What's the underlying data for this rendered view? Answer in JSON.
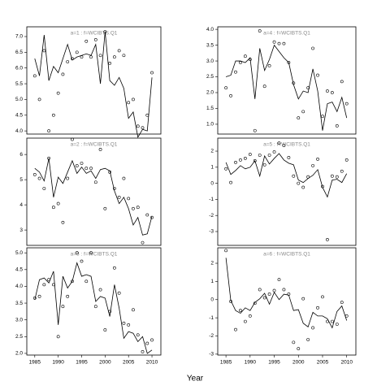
{
  "x_label": "Year",
  "chart_data": [
    {
      "type": "scatter",
      "title": "a=1 : f=WCIBTS.Q1",
      "x": [
        1985,
        1986,
        1987,
        1988,
        1989,
        1990,
        1991,
        1992,
        1993,
        1994,
        1995,
        1996,
        1997,
        1998,
        1999,
        2000,
        2001,
        2002,
        2003,
        2004,
        2005,
        2006,
        2007,
        2008,
        2009,
        2010
      ],
      "series": [
        {
          "mode": "points",
          "color": "#000000",
          "values": [
            5.75,
            5.0,
            6.55,
            4.0,
            4.5,
            5.2,
            5.8,
            6.2,
            6.3,
            6.5,
            6.35,
            6.85,
            6.35,
            6.9,
            6.4,
            7.15,
            6.15,
            6.35,
            6.55,
            6.4,
            4.9,
            5.0,
            4.15,
            4.1,
            4.5,
            5.85
          ]
        },
        {
          "mode": "line",
          "color": "#000000",
          "values": [
            6.3,
            5.75,
            7.05,
            5.6,
            6.05,
            5.85,
            6.3,
            6.75,
            6.25,
            6.35,
            6.4,
            6.45,
            6.4,
            6.75,
            5.5,
            7.15,
            5.6,
            5.45,
            5.7,
            5.35,
            4.4,
            4.6,
            3.8,
            4.05,
            4.0,
            5.7
          ]
        }
      ],
      "xlim": [
        1983.3,
        2011.9
      ],
      "ylim": [
        3.9,
        7.31
      ],
      "yticks": [
        {
          "value": 4,
          "label": "4.0"
        },
        {
          "value": 4.5,
          "label": "4.5"
        },
        {
          "value": 5,
          "label": "5.0"
        },
        {
          "value": 5.5,
          "label": "5.5"
        },
        {
          "value": 6,
          "label": "6.0"
        },
        {
          "value": 6.5,
          "label": "6.5"
        },
        {
          "value": 7,
          "label": "7.0"
        }
      ]
    },
    {
      "type": "scatter",
      "title": "a=2 : f=WCIBTS.Q1",
      "x": [
        1985,
        1986,
        1987,
        1988,
        1989,
        1990,
        1991,
        1992,
        1993,
        1994,
        1995,
        1996,
        1997,
        1998,
        1999,
        2000,
        2001,
        2002,
        2003,
        2004,
        2005,
        2006,
        2007,
        2008,
        2009,
        2010
      ],
      "series": [
        {
          "mode": "points",
          "color": "#000000",
          "values": [
            5.2,
            5.05,
            4.65,
            5.85,
            3.9,
            4.05,
            3.3,
            5.05,
            6.6,
            5.55,
            5.65,
            5.45,
            5.45,
            4.9,
            6.2,
            3.85,
            5.3,
            4.65,
            4.3,
            5.05,
            4.25,
            3.85,
            3.9,
            2.5,
            3.6,
            3.5
          ]
        },
        {
          "mode": "line",
          "color": "#000000",
          "values": [
            5.45,
            5.3,
            4.95,
            5.85,
            4.3,
            5.1,
            4.85,
            5.3,
            5.75,
            5.25,
            5.5,
            5.25,
            5.35,
            5.05,
            5.4,
            5.45,
            5.35,
            4.55,
            4.05,
            4.3,
            3.85,
            3.2,
            3.5,
            2.8,
            2.85,
            3.55
          ]
        }
      ],
      "xlim": [
        1983.3,
        2011.9
      ],
      "ylim": [
        2.39,
        6.65
      ],
      "yticks": [
        3,
        4,
        5,
        6
      ]
    },
    {
      "type": "scatter",
      "title": "a=3 : f=WCIBTS.Q1",
      "x": [
        1985,
        1986,
        1987,
        1988,
        1989,
        1990,
        1991,
        1992,
        1993,
        1994,
        1995,
        1996,
        1997,
        1998,
        1999,
        2000,
        2001,
        2002,
        2003,
        2004,
        2005,
        2006,
        2007,
        2008,
        2009,
        2010
      ],
      "series": [
        {
          "mode": "points",
          "color": "#000000",
          "values": [
            3.65,
            3.7,
            4.05,
            4.2,
            4.05,
            2.5,
            3.4,
            3.7,
            4.15,
            5.0,
            4.75,
            4.15,
            5.0,
            3.4,
            3.9,
            2.7,
            3.25,
            4.55,
            3.8,
            2.9,
            2.85,
            3.3,
            2.55,
            2.05,
            2.3,
            2.4
          ]
        },
        {
          "mode": "line",
          "color": "#000000",
          "values": [
            3.6,
            4.2,
            4.25,
            4.1,
            4.45,
            2.85,
            4.3,
            3.95,
            4.15,
            4.7,
            4.3,
            4.35,
            4.3,
            3.55,
            3.7,
            3.65,
            3.1,
            4.05,
            3.35,
            2.45,
            2.65,
            2.6,
            2.35,
            2.5,
            2.0,
            2.1
          ]
        }
      ],
      "xlim": [
        1983.3,
        2011.9
      ],
      "ylim": [
        1.95,
        5.15
      ],
      "xticks": [
        1985,
        1990,
        1995,
        2000,
        2005,
        2010
      ],
      "yticks": [
        {
          "value": 2,
          "label": "2.0"
        },
        {
          "value": 2.5,
          "label": "2.5"
        },
        {
          "value": 3,
          "label": "3.0"
        },
        {
          "value": 3.5,
          "label": "3.5"
        },
        {
          "value": 4,
          "label": "4.0"
        },
        {
          "value": 4.5,
          "label": "4.5"
        },
        {
          "value": 5,
          "label": "5.0"
        }
      ]
    },
    {
      "type": "scatter",
      "title": "a=4 : f=WCIBTS.Q1",
      "x": [
        1985,
        1986,
        1987,
        1988,
        1989,
        1990,
        1991,
        1992,
        1993,
        1994,
        1995,
        1996,
        1997,
        1998,
        1999,
        2000,
        2001,
        2002,
        2003,
        2004,
        2005,
        2006,
        2007,
        2008,
        2009,
        2010
      ],
      "series": [
        {
          "mode": "points",
          "color": "#000000",
          "values": [
            2.15,
            1.9,
            2.65,
            2.95,
            3.15,
            3.05,
            0.8,
            3.95,
            2.2,
            2.85,
            3.6,
            3.55,
            3.55,
            2.95,
            2.3,
            1.2,
            1.4,
            2.15,
            3.4,
            2.55,
            1.25,
            2.05,
            2.0,
            0.95,
            2.35,
            1.65
          ]
        },
        {
          "mode": "line",
          "color": "#000000",
          "values": [
            2.5,
            2.55,
            3.0,
            3.0,
            2.95,
            3.1,
            1.8,
            3.4,
            2.7,
            3.05,
            3.5,
            3.3,
            3.1,
            2.95,
            2.25,
            1.8,
            2.05,
            2.0,
            2.75,
            2.05,
            0.8,
            1.65,
            1.7,
            1.4,
            1.85,
            1.2
          ]
        }
      ],
      "xlim": [
        1983.3,
        2011.9
      ],
      "ylim": [
        0.69,
        4.08
      ],
      "yticks": [
        {
          "value": 1,
          "label": "1.0"
        },
        {
          "value": 1.5,
          "label": "1.5"
        },
        {
          "value": 2,
          "label": "2.0"
        },
        {
          "value": 2.5,
          "label": "2.5"
        },
        {
          "value": 3,
          "label": "3.0"
        },
        {
          "value": 3.5,
          "label": "3.5"
        },
        {
          "value": 4,
          "label": "4.0"
        }
      ]
    },
    {
      "type": "scatter",
      "title": "a=5 : f=WCIBTS.Q1",
      "x": [
        1985,
        1986,
        1987,
        1988,
        1989,
        1990,
        1991,
        1992,
        1993,
        1994,
        1995,
        1996,
        1997,
        1998,
        1999,
        2000,
        2001,
        2002,
        2003,
        2004,
        2005,
        2006,
        2007,
        2008,
        2009,
        2010
      ],
      "series": [
        {
          "mode": "points",
          "color": "#000000",
          "values": [
            0.9,
            0.05,
            1.3,
            1.45,
            1.55,
            1.8,
            1.4,
            1.75,
            1.15,
            1.75,
            1.95,
            2.5,
            2.35,
            1.6,
            0.45,
            0.0,
            -0.25,
            0.4,
            1.1,
            1.5,
            -0.2,
            -3.5,
            0.45,
            0.4,
            0.75,
            1.45
          ]
        },
        {
          "mode": "line",
          "color": "#000000",
          "values": [
            1.3,
            0.55,
            0.8,
            1.1,
            0.9,
            1.0,
            1.4,
            0.45,
            1.7,
            1.2,
            1.55,
            1.85,
            1.45,
            1.25,
            1.15,
            0.2,
            0.05,
            0.3,
            0.5,
            0.85,
            -0.25,
            -0.85,
            0.2,
            0.25,
            0.05,
            0.6
          ]
        }
      ],
      "xlim": [
        1983.3,
        2011.9
      ],
      "ylim": [
        -3.86,
        2.81
      ],
      "yticks": [
        -3,
        -2,
        -1,
        0,
        1,
        2
      ]
    },
    {
      "type": "scatter",
      "title": "a=6 : f=WCIBTS.Q1",
      "x": [
        1985,
        1986,
        1987,
        1988,
        1989,
        1990,
        1991,
        1992,
        1993,
        1994,
        1995,
        1996,
        1997,
        1998,
        1999,
        2000,
        2001,
        2002,
        2003,
        2004,
        2005,
        2006,
        2007,
        2008,
        2009,
        2010
      ],
      "series": [
        {
          "mode": "points",
          "color": "#000000",
          "values": [
            2.7,
            -0.1,
            -1.65,
            -0.6,
            -1.2,
            -0.9,
            -0.2,
            0.55,
            0.1,
            0.3,
            0.5,
            1.1,
            0.55,
            0.3,
            -2.35,
            -2.7,
            0.05,
            -2.2,
            -1.55,
            -0.45,
            0.15,
            -1.2,
            -1.2,
            -1.35,
            -0.15,
            -0.9
          ]
        },
        {
          "mode": "line",
          "color": "#000000",
          "values": [
            2.3,
            -0.05,
            -0.6,
            -0.75,
            -0.45,
            -0.6,
            -0.15,
            0.05,
            0.35,
            -0.25,
            0.4,
            0.0,
            0.3,
            0.25,
            -0.6,
            -0.55,
            -1.3,
            -1.5,
            -0.7,
            -0.9,
            -0.9,
            -1.05,
            -1.55,
            -0.65,
            -0.35,
            -1.15
          ]
        }
      ],
      "xlim": [
        1983.3,
        2011.9
      ],
      "ylim": [
        -3.05,
        2.85
      ],
      "xticks": [
        1985,
        1990,
        1995,
        2000,
        2005,
        2010
      ],
      "yticks": [
        -3,
        -2,
        -1,
        0,
        1,
        2
      ]
    }
  ]
}
